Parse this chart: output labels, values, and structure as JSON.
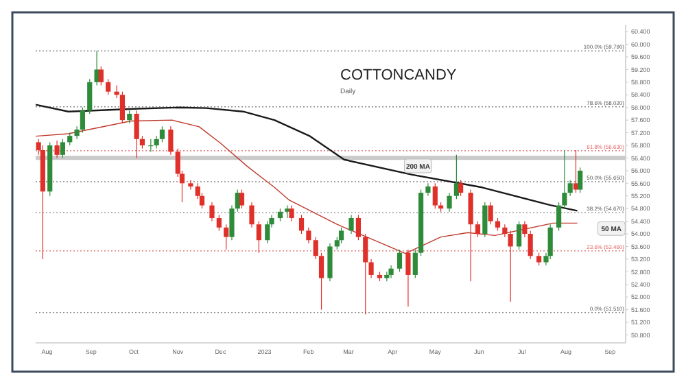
{
  "chart_data": {
    "type": "candlestick",
    "title": "COTTONCANDY",
    "subtitle": "Daily",
    "x": [
      "2022-07-26",
      "2022-07-29",
      "2022-08-03",
      "2022-08-08",
      "2022-08-12",
      "2022-08-17",
      "2022-08-22",
      "2022-08-26",
      "2022-08-31",
      "2022-09-05",
      "2022-09-08",
      "2022-09-13",
      "2022-09-19",
      "2022-09-23",
      "2022-09-28",
      "2022-10-03",
      "2022-10-07",
      "2022-10-13",
      "2022-10-17",
      "2022-10-21",
      "2022-10-27",
      "2022-11-01",
      "2022-11-04",
      "2022-11-10",
      "2022-11-15",
      "2022-11-18",
      "2022-11-25",
      "2022-11-30",
      "2022-12-05",
      "2022-12-09",
      "2022-12-13",
      "2022-12-16",
      "2022-12-23",
      "2022-12-28",
      "2023-01-03",
      "2023-01-06",
      "2023-01-12",
      "2023-01-17",
      "2023-01-20",
      "2023-01-27",
      "2023-02-01",
      "2023-02-06",
      "2023-02-10",
      "2023-02-16",
      "2023-02-21",
      "2023-02-24",
      "2023-03-03",
      "2023-03-08",
      "2023-03-13",
      "2023-03-17",
      "2023-03-23",
      "2023-03-28",
      "2023-03-31",
      "2023-04-06",
      "2023-04-12",
      "2023-04-17",
      "2023-04-21",
      "2023-04-26",
      "2023-05-01",
      "2023-05-05",
      "2023-05-11",
      "2023-05-16",
      "2023-05-19",
      "2023-05-26",
      "2023-05-31",
      "2023-06-05",
      "2023-06-09",
      "2023-06-14",
      "2023-06-19",
      "2023-06-23",
      "2023-06-29",
      "2023-07-03",
      "2023-07-07",
      "2023-07-13",
      "2023-07-18",
      "2023-07-21",
      "2023-07-27",
      "2023-07-31",
      "2023-08-04",
      "2023-08-08",
      "2023-08-11"
    ],
    "ohlc": [
      [
        56.9,
        57.0,
        56.5,
        56.65
      ],
      [
        56.65,
        56.8,
        53.2,
        55.34
      ],
      [
        55.34,
        56.9,
        55.2,
        56.8
      ],
      [
        56.8,
        56.95,
        56.4,
        56.5
      ],
      [
        56.5,
        57.0,
        56.4,
        56.9
      ],
      [
        56.9,
        57.2,
        56.8,
        57.1
      ],
      [
        57.1,
        57.4,
        57.0,
        57.3
      ],
      [
        57.3,
        58.0,
        57.2,
        57.9
      ],
      [
        57.9,
        58.9,
        57.8,
        58.8
      ],
      [
        58.8,
        59.79,
        58.7,
        59.2
      ],
      [
        59.2,
        59.3,
        58.7,
        58.8
      ],
      [
        58.8,
        58.9,
        58.4,
        58.5
      ],
      [
        58.5,
        58.7,
        58.3,
        58.4
      ],
      [
        58.4,
        58.5,
        57.5,
        57.6
      ],
      [
        57.6,
        57.9,
        57.5,
        57.8
      ],
      [
        57.8,
        57.9,
        56.4,
        57.0
      ],
      [
        57.0,
        57.1,
        56.7,
        56.8
      ],
      [
        56.8,
        57.0,
        56.6,
        56.8
      ],
      [
        56.8,
        57.1,
        56.7,
        57.0
      ],
      [
        57.0,
        57.4,
        56.9,
        57.3
      ],
      [
        57.3,
        57.4,
        56.5,
        56.6
      ],
      [
        56.6,
        56.7,
        55.8,
        55.9
      ],
      [
        55.9,
        56.0,
        55.0,
        55.6
      ],
      [
        55.6,
        55.7,
        55.4,
        55.5
      ],
      [
        55.5,
        55.6,
        55.1,
        55.2
      ],
      [
        55.2,
        55.3,
        54.8,
        54.9
      ],
      [
        54.9,
        55.0,
        54.4,
        54.5
      ],
      [
        54.5,
        54.6,
        54.1,
        54.2
      ],
      [
        54.2,
        54.3,
        53.5,
        53.9
      ],
      [
        53.9,
        54.9,
        53.8,
        54.8
      ],
      [
        54.8,
        55.4,
        54.7,
        55.3
      ],
      [
        55.3,
        55.4,
        54.8,
        54.9
      ],
      [
        54.9,
        55.0,
        54.2,
        54.3
      ],
      [
        54.3,
        54.4,
        53.4,
        53.8
      ],
      [
        53.8,
        54.4,
        53.7,
        54.3
      ],
      [
        54.3,
        54.6,
        54.2,
        54.5
      ],
      [
        54.5,
        54.8,
        54.4,
        54.7
      ],
      [
        54.7,
        54.9,
        54.5,
        54.8
      ],
      [
        54.8,
        54.9,
        54.4,
        54.5
      ],
      [
        54.5,
        54.6,
        54.0,
        54.1
      ],
      [
        54.1,
        54.2,
        53.7,
        53.8
      ],
      [
        53.8,
        53.9,
        53.2,
        53.3
      ],
      [
        53.3,
        53.4,
        51.6,
        52.6
      ],
      [
        52.6,
        53.7,
        52.5,
        53.6
      ],
      [
        53.6,
        53.9,
        53.5,
        53.8
      ],
      [
        53.8,
        54.2,
        53.7,
        54.1
      ],
      [
        54.1,
        54.6,
        54.0,
        54.5
      ],
      [
        54.5,
        54.6,
        53.8,
        53.9
      ],
      [
        53.9,
        54.0,
        51.45,
        53.1
      ],
      [
        53.1,
        53.2,
        52.6,
        52.7
      ],
      [
        52.7,
        52.8,
        52.5,
        52.6
      ],
      [
        52.6,
        52.8,
        52.5,
        52.7
      ],
      [
        52.7,
        53.0,
        52.6,
        52.9
      ],
      [
        52.9,
        53.5,
        52.8,
        53.4
      ],
      [
        53.4,
        53.5,
        51.7,
        52.7
      ],
      [
        52.7,
        53.5,
        52.6,
        53.4
      ],
      [
        53.4,
        55.4,
        53.3,
        55.3
      ],
      [
        55.3,
        55.6,
        55.2,
        55.5
      ],
      [
        55.5,
        55.6,
        54.8,
        54.9
      ],
      [
        54.9,
        55.0,
        54.7,
        54.8
      ],
      [
        54.8,
        55.3,
        54.7,
        55.2
      ],
      [
        55.2,
        56.5,
        55.1,
        55.6
      ],
      [
        55.6,
        55.7,
        55.2,
        55.3
      ],
      [
        55.3,
        55.4,
        52.5,
        54.3
      ],
      [
        54.3,
        54.4,
        53.9,
        54.0
      ],
      [
        54.0,
        55.0,
        53.9,
        54.9
      ],
      [
        54.9,
        55.0,
        54.3,
        54.4
      ],
      [
        54.4,
        54.5,
        54.1,
        54.2
      ],
      [
        54.2,
        54.3,
        53.9,
        54.0
      ],
      [
        54.0,
        54.1,
        51.85,
        53.6
      ],
      [
        53.6,
        54.4,
        53.5,
        54.3
      ],
      [
        54.3,
        54.4,
        53.9,
        54.0
      ],
      [
        54.0,
        54.1,
        53.2,
        53.3
      ],
      [
        53.3,
        53.4,
        53.0,
        53.1
      ],
      [
        53.1,
        53.4,
        53.0,
        53.3
      ],
      [
        53.3,
        54.3,
        53.2,
        54.2
      ],
      [
        54.2,
        55.0,
        54.1,
        54.9
      ],
      [
        54.9,
        56.65,
        54.8,
        55.3
      ],
      [
        55.3,
        55.7,
        55.2,
        55.6
      ],
      [
        55.6,
        56.65,
        55.3,
        55.4
      ],
      [
        55.4,
        56.1,
        55.3,
        56.0
      ]
    ],
    "series": [
      {
        "type": "line",
        "color": "#1a1a1a",
        "x": [
          "2022-07-24",
          "2022-08-16",
          "2022-10-04",
          "2022-11-02",
          "2022-11-21",
          "2022-12-17",
          "2023-01-08",
          "2023-02-02",
          "2023-02-26",
          "2023-04-15",
          "2023-06-03",
          "2023-07-21",
          "2023-08-09"
        ],
        "values": [
          58.09,
          57.87,
          57.96,
          58.0,
          57.98,
          57.87,
          57.6,
          57.09,
          56.35,
          55.87,
          55.47,
          54.91,
          54.73
        ]
      },
      {
        "type": "line",
        "color": "#c0392b",
        "x": [
          "2022-07-24",
          "2022-08-16",
          "2022-09-29",
          "2022-10-28",
          "2022-11-16",
          "2022-12-01",
          "2022-12-20",
          "2023-01-08",
          "2023-01-18",
          "2023-02-21",
          "2023-04-10",
          "2023-05-05",
          "2023-05-24",
          "2023-06-12",
          "2023-07-23",
          "2023-08-09"
        ],
        "values": [
          57.09,
          57.17,
          57.57,
          57.6,
          57.39,
          56.87,
          56.13,
          55.47,
          55.08,
          54.3,
          53.38,
          53.9,
          54.04,
          53.95,
          54.34,
          54.34
        ]
      }
    ],
    "xlim": [
      "2022-07-24",
      "2023-09-12"
    ],
    "xticks": [
      {
        "value": "2022-08-01",
        "label": "Aug"
      },
      {
        "value": "2022-09-01",
        "label": "Sep"
      },
      {
        "value": "2022-10-01",
        "label": "Oct"
      },
      {
        "value": "2022-11-01",
        "label": "Nov"
      },
      {
        "value": "2022-12-01",
        "label": "Dec"
      },
      {
        "value": "2023-01-01",
        "label": "2023"
      },
      {
        "value": "2023-02-01",
        "label": "Feb"
      },
      {
        "value": "2023-03-01",
        "label": "Mar"
      },
      {
        "value": "2023-04-01",
        "label": "Apr"
      },
      {
        "value": "2023-05-01",
        "label": "May"
      },
      {
        "value": "2023-06-01",
        "label": "Jun"
      },
      {
        "value": "2023-07-01",
        "label": "Jul"
      },
      {
        "value": "2023-08-01",
        "label": "Aug"
      },
      {
        "value": "2023-09-01",
        "label": "Sep"
      }
    ],
    "ylim": [
      50.55,
      60.62
    ],
    "yticks": [
      {
        "value": 50.8,
        "label": "50.800"
      },
      {
        "value": 51.2,
        "label": "51.200"
      },
      {
        "value": 51.6,
        "label": "51.600"
      },
      {
        "value": 52.0,
        "label": "52.000"
      },
      {
        "value": 52.4,
        "label": "52.400"
      },
      {
        "value": 52.8,
        "label": "52.800"
      },
      {
        "value": 53.2,
        "label": "53.200"
      },
      {
        "value": 53.6,
        "label": "53.600"
      },
      {
        "value": 54.0,
        "label": "54.000"
      },
      {
        "value": 54.4,
        "label": "54.400"
      },
      {
        "value": 54.8,
        "label": "54.800"
      },
      {
        "value": 55.2,
        "label": "55.200"
      },
      {
        "value": 55.6,
        "label": "55.600"
      },
      {
        "value": 56.0,
        "label": "56.000"
      },
      {
        "value": 56.4,
        "label": "56.400"
      },
      {
        "value": 56.8,
        "label": "56.800"
      },
      {
        "value": 57.2,
        "label": "57.200"
      },
      {
        "value": 57.6,
        "label": "57.600"
      },
      {
        "value": 58.0,
        "label": "58.000"
      },
      {
        "value": 58.4,
        "label": "58.400"
      },
      {
        "value": 58.8,
        "label": "58.800"
      },
      {
        "value": 59.2,
        "label": "59.200"
      },
      {
        "value": 59.6,
        "label": "59.600"
      },
      {
        "value": 60.0,
        "label": "60.000"
      },
      {
        "value": 60.4,
        "label": "60.400"
      }
    ],
    "ref_lines": [
      {
        "axis": "y",
        "value": 59.79,
        "label": "100.0% (59.790)",
        "color": "#888888",
        "line_style": "dotted"
      },
      {
        "axis": "y",
        "value": 58.02,
        "label": "78.6% (58.020)",
        "color": "#888888",
        "line_style": "dotted"
      },
      {
        "axis": "y",
        "value": 56.63,
        "label": "61.8% (56.630)",
        "color": "#e06060",
        "line_style": "dotted"
      },
      {
        "axis": "y",
        "value": 55.65,
        "label": "50.0% (55.650)",
        "color": "#888888",
        "line_style": "dotted"
      },
      {
        "axis": "y",
        "value": 54.67,
        "label": "38.2% (54.670)",
        "color": "#888888",
        "line_style": "dotted"
      },
      {
        "axis": "y",
        "value": 53.46,
        "label": "23.6% (53.460)",
        "color": "#e06060",
        "line_style": "dotted"
      },
      {
        "axis": "y",
        "value": 51.51,
        "label": "0.0% (51.510)",
        "color": "#888888",
        "line_style": "dotted"
      }
    ],
    "bands": [
      {
        "axis": "y",
        "from": 56.34,
        "to": 56.47,
        "color": "#bdbdbd"
      }
    ],
    "annotations": [
      {
        "text": "200 MA",
        "x": "2023-04-19",
        "y": 56.15
      },
      {
        "text": "50 MA",
        "x": "2023-09-02",
        "y": 54.17
      }
    ],
    "grid": false
  }
}
